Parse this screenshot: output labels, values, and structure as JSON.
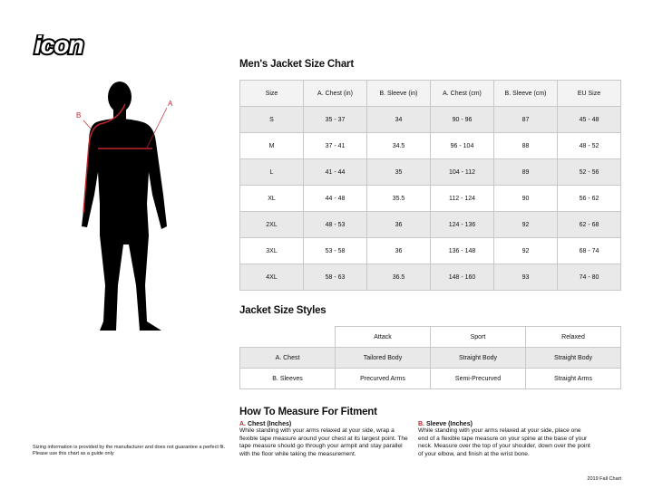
{
  "logo": {
    "text": "icon"
  },
  "figure": {
    "label_a": "A",
    "label_b": "B",
    "accent": "#c0262d"
  },
  "size_chart": {
    "title": "Men's Jacket Size Chart",
    "headers": [
      "Size",
      "A. Chest (in)",
      "B. Sleeve (in)",
      "A. Chest (cm)",
      "B. Sleeve (cm)",
      "EU Size"
    ],
    "rows": [
      [
        "S",
        "35 - 37",
        "34",
        "90 - 96",
        "87",
        "45 - 48"
      ],
      [
        "M",
        "37 - 41",
        "34.5",
        "96 - 104",
        "88",
        "48 - 52"
      ],
      [
        "L",
        "41 - 44",
        "35",
        "104 - 112",
        "89",
        "52 - 56"
      ],
      [
        "XL",
        "44 - 48",
        "35.5",
        "112 - 124",
        "90",
        "56 - 62"
      ],
      [
        "2XL",
        "48 - 53",
        "36",
        "124 - 136",
        "92",
        "62 - 68"
      ],
      [
        "3XL",
        "53 - 58",
        "36",
        "136 - 148",
        "92",
        "68 - 74"
      ],
      [
        "4XL",
        "58 - 63",
        "36.5",
        "148 - 160",
        "93",
        "74 - 80"
      ]
    ]
  },
  "styles": {
    "title": "Jacket Size Styles",
    "headers": [
      "Attack",
      "Sport",
      "Relaxed"
    ],
    "rows": [
      [
        "A. Chest",
        "Tailored Body",
        "Straight Body",
        "Straight Body"
      ],
      [
        "B. Sleeves",
        "Precurved Arms",
        "Semi-Precurved",
        "Straight Arms"
      ]
    ]
  },
  "measure": {
    "title": "How To Measure For Fitment",
    "chest": {
      "letter": "A.",
      "heading": "Chest (Inches)",
      "text": "While standing with your arms relaxed at your side, wrap a flexible tape measure around your chest at its largest point. The tape measure should go through your armpit and stay parallel with the floor while taking the measurement."
    },
    "sleeve": {
      "letter": "B.",
      "heading": "Sleeve (Inches)",
      "text": "While standing with your arms relaxed at your side, place one end of a flexible tape measure on your spine at the base of your neck. Measure over the top of your shoulder, down over the point of your elbow, and finish at the wrist bone."
    }
  },
  "disclaimer": "Sizing information is provided by the manufacturer and does not guarantee a perfect fit. Please use this chart as a guide only",
  "edition": "2019 Fall Chart"
}
